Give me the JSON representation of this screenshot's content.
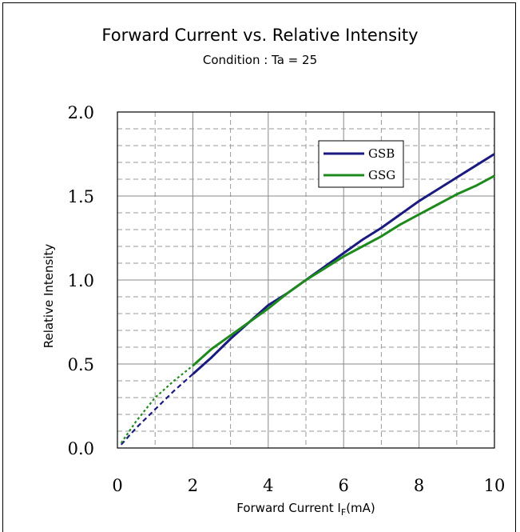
{
  "chart_data": {
    "type": "line",
    "title": "Forward Current vs. Relative Intensity",
    "subtitle": "Condition : Ta = 25",
    "xlabel": "Forward Current I",
    "xlabel_sub": "F",
    "xlabel_unit": "(mA)",
    "ylabel": "Relative Intensity",
    "xlim": [
      0,
      10
    ],
    "ylim": [
      0,
      2.0
    ],
    "x_ticks": [
      "0",
      "2",
      "4",
      "6",
      "8",
      "10"
    ],
    "y_ticks": [
      "0.0",
      "0.5",
      "1.0",
      "1.5",
      "2.0"
    ],
    "grid": true,
    "legend_position": "top-right",
    "series": [
      {
        "name": "GSB",
        "color": "#1a1a80",
        "dotted_x": [
          0.1,
          0.5,
          1.0,
          1.5,
          2.0
        ],
        "dotted_y": [
          0.02,
          0.12,
          0.23,
          0.34,
          0.44
        ],
        "x": [
          2.0,
          2.5,
          3.0,
          3.5,
          4.0,
          4.5,
          5.0,
          5.5,
          6.0,
          6.5,
          7.0,
          7.5,
          8.0,
          8.5,
          9.0,
          9.5,
          10.0
        ],
        "y": [
          0.44,
          0.54,
          0.65,
          0.75,
          0.85,
          0.92,
          1.0,
          1.08,
          1.16,
          1.24,
          1.31,
          1.39,
          1.47,
          1.54,
          1.61,
          1.68,
          1.75
        ]
      },
      {
        "name": "GSG",
        "color": "#1e8a1e",
        "dotted_x": [
          0.1,
          0.5,
          1.0,
          1.5,
          2.0
        ],
        "dotted_y": [
          0.03,
          0.16,
          0.3,
          0.4,
          0.49
        ],
        "x": [
          2.0,
          2.5,
          3.0,
          3.5,
          4.0,
          4.5,
          5.0,
          5.5,
          6.0,
          6.5,
          7.0,
          7.5,
          8.0,
          8.5,
          9.0,
          9.5,
          10.0
        ],
        "y": [
          0.49,
          0.59,
          0.67,
          0.75,
          0.83,
          0.92,
          1.0,
          1.07,
          1.14,
          1.2,
          1.26,
          1.33,
          1.39,
          1.45,
          1.51,
          1.56,
          1.62
        ]
      }
    ]
  }
}
